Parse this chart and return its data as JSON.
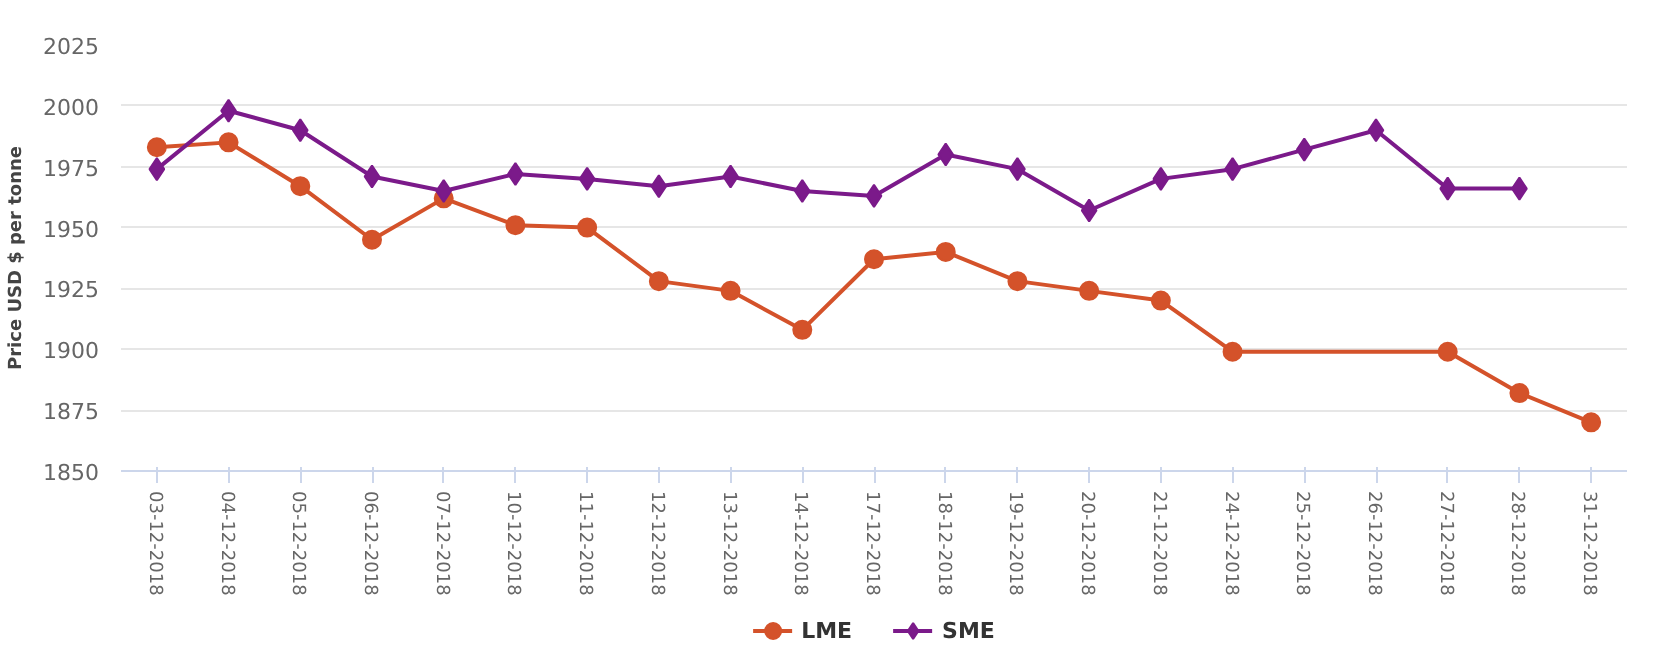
{
  "chart_data": {
    "type": "line",
    "ylabel": "Price USD $ per tonne",
    "categories": [
      "03-12-2018",
      "04-12-2018",
      "05-12-2018",
      "06-12-2018",
      "07-12-2018",
      "10-12-2018",
      "11-12-2018",
      "12-12-2018",
      "13-12-2018",
      "14-12-2018",
      "17-12-2018",
      "18-12-2018",
      "19-12-2018",
      "20-12-2018",
      "21-12-2018",
      "24-12-2018",
      "25-12-2018",
      "26-12-2018",
      "27-12-2018",
      "28-12-2018",
      "31-12-2018"
    ],
    "series": [
      {
        "name": "LME",
        "color": "#d4522a",
        "marker": "circle",
        "values": [
          1983,
          1985,
          1967,
          1945,
          1962,
          1951,
          1950,
          1928,
          1924,
          1908,
          1937,
          1940,
          1928,
          1924,
          1920,
          1899,
          null,
          null,
          1899,
          1882,
          1870
        ]
      },
      {
        "name": "SME",
        "color": "#7b1a8a",
        "marker": "diamond",
        "values": [
          1974,
          1998,
          1990,
          1971,
          1965,
          1972,
          1970,
          1967,
          1971,
          1965,
          1963,
          1980,
          1974,
          1957,
          1970,
          1974,
          1982,
          1990,
          1966,
          1966,
          null
        ]
      }
    ],
    "ylim": [
      1850,
      2025
    ],
    "yticks": [
      1850,
      1875,
      1900,
      1925,
      1950,
      1975,
      2000,
      2025
    ],
    "grid": "y",
    "legend": "bottom"
  }
}
